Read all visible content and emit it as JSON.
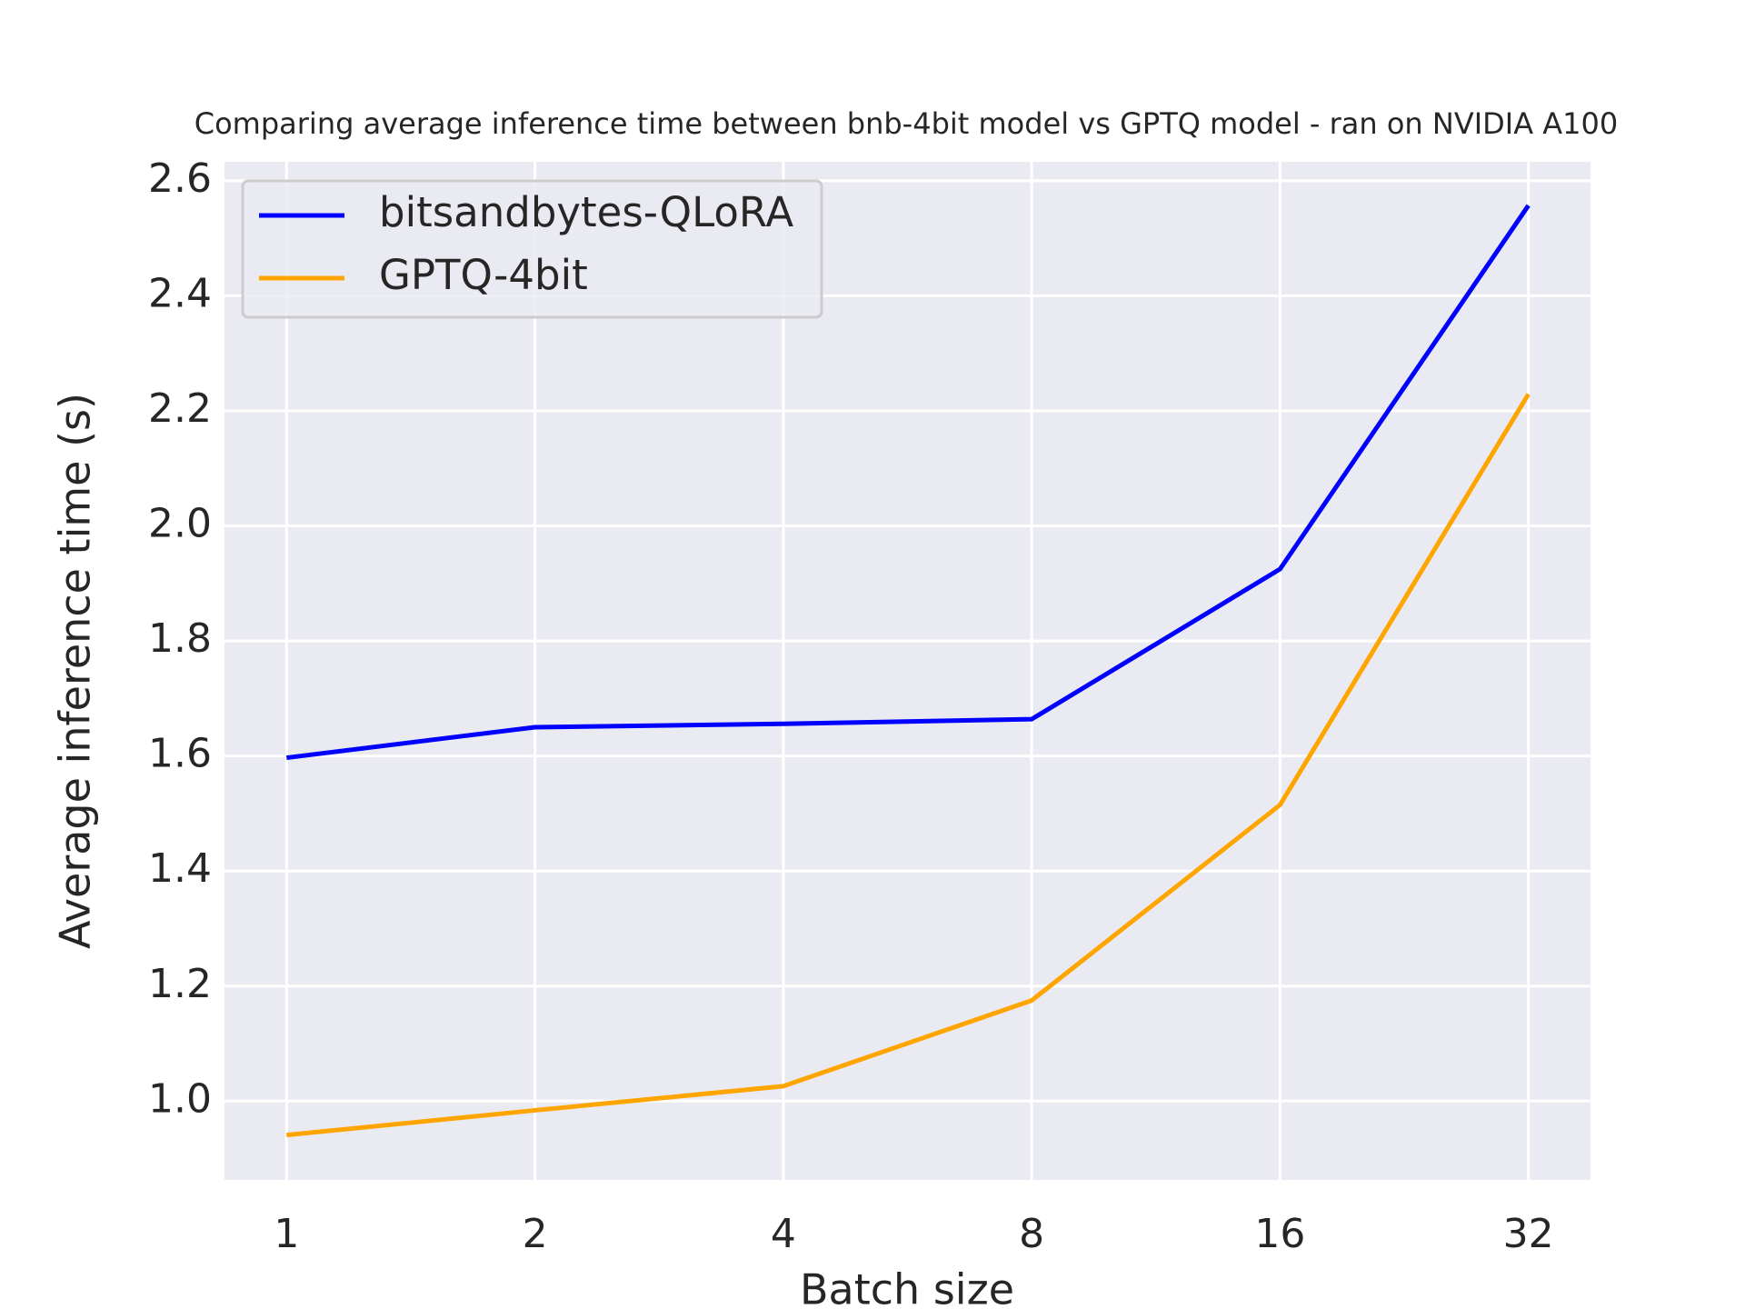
{
  "chart_data": {
    "type": "line",
    "title": "Comparing average inference time between bnb-4bit model vs GPTQ model - ran on NVIDIA A100",
    "x_label": "Batch size",
    "y_label": "Average inference time (s)",
    "categories": [
      "1",
      "2",
      "4",
      "8",
      "16",
      "32"
    ],
    "series": [
      {
        "name": "bitsandbytes-QLoRA",
        "color": "#0000ff",
        "values": [
          1.597,
          1.65,
          1.656,
          1.664,
          1.925,
          2.557
        ]
      },
      {
        "name": "GPTQ-4bit",
        "color": "#ffa500",
        "values": [
          0.941,
          0.984,
          1.026,
          1.175,
          1.515,
          2.229
        ]
      }
    ],
    "ylim": [
      0.863,
      2.633
    ],
    "yticks": [
      {
        "value": 1,
        "label": "1.0"
      },
      1.2,
      1.4,
      1.6,
      1.8,
      {
        "value": 2,
        "label": "2.0"
      },
      2.2,
      2.4,
      2.6
    ],
    "grid": true,
    "legend": "upper left",
    "background": "#eaeaf2"
  }
}
